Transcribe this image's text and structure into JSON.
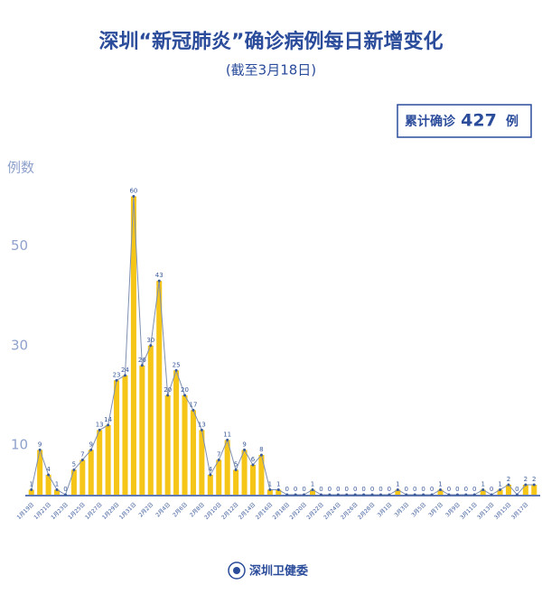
{
  "title": "深圳“新冠肺炎”确诊病例每日新增变化",
  "subtitle": "(截至3月18日)",
  "total_box": {
    "prefix": "累计确诊",
    "total": 427,
    "suffix": "例"
  },
  "footer": "深圳卫健委",
  "chart_data": {
    "type": "bar",
    "line_overlay": true,
    "y_label": "例数",
    "categories": [
      "1月19日",
      null,
      "1月21日",
      null,
      "1月23日",
      null,
      "1月25日",
      null,
      "1月27日",
      null,
      "1月29日",
      null,
      "1月31日",
      null,
      "2月2日",
      null,
      "2月4日",
      null,
      "2月6日",
      null,
      "2月8日",
      null,
      "2月10日",
      null,
      "2月12日",
      null,
      "2月14日",
      null,
      "2月16日",
      null,
      "2月18日",
      null,
      "2月20日",
      null,
      "2月22日",
      null,
      "2月24日",
      null,
      "2月26日",
      null,
      "2月28日",
      null,
      "3月1日",
      null,
      "3月3日",
      null,
      "3月5日",
      null,
      "3月7日",
      null,
      "3月9日",
      null,
      "3月11日",
      null,
      "3月13日",
      null,
      "3月15日",
      null,
      "3月17日",
      null
    ],
    "values": [
      1,
      9,
      4,
      1,
      0,
      5,
      7,
      9,
      13,
      14,
      23,
      24,
      60,
      26,
      30,
      43,
      20,
      25,
      20,
      17,
      13,
      4,
      7,
      11,
      5,
      9,
      6,
      8,
      1,
      1,
      0,
      0,
      0,
      1,
      0,
      0,
      0,
      0,
      0,
      0,
      0,
      0,
      0,
      1,
      0,
      0,
      0,
      0,
      1,
      0,
      0,
      0,
      0,
      1,
      0,
      1,
      2,
      0,
      2,
      2
    ],
    "color": "#f5c518",
    "line_color": "#7f8fb0",
    "ylim": [
      0,
      65
    ],
    "yticks": [
      10,
      30,
      50
    ]
  }
}
